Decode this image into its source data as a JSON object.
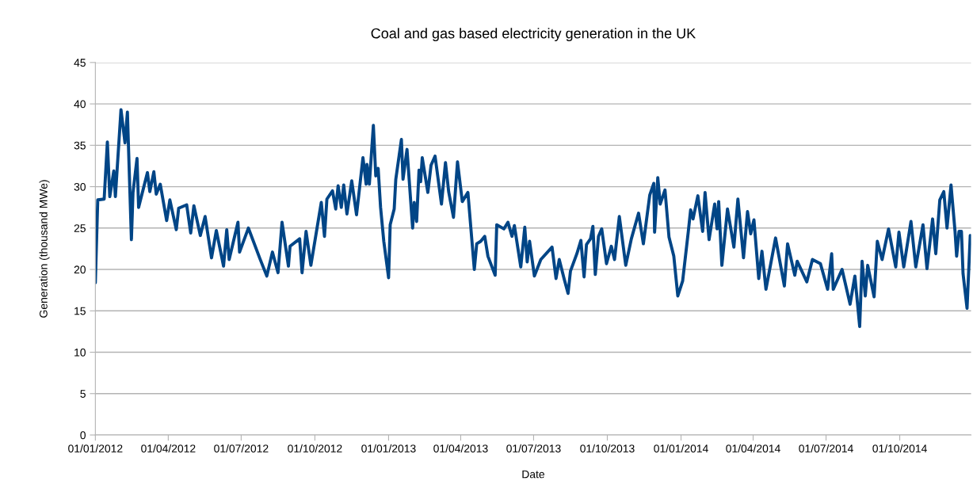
{
  "chart_data": {
    "type": "line",
    "title": "Coal and gas based electricity generation in the UK",
    "xlabel": "Date",
    "ylabel": "Generation (thousand MWe)",
    "x": [
      "2012-01-01",
      "2012-01-04",
      "2012-01-12",
      "2012-01-16",
      "2012-01-19",
      "2012-01-24",
      "2012-01-26",
      "2012-02-02",
      "2012-02-07",
      "2012-02-10",
      "2012-02-15",
      "2012-02-17",
      "2012-02-22",
      "2012-02-24",
      "2012-03-06",
      "2012-03-09",
      "2012-03-14",
      "2012-03-17",
      "2012-03-22",
      "2012-03-30",
      "2012-04-03",
      "2012-04-11",
      "2012-04-14",
      "2012-04-24",
      "2012-04-29",
      "2012-05-03",
      "2012-05-11",
      "2012-05-17",
      "2012-05-25",
      "2012-05-31",
      "2012-06-09",
      "2012-06-13",
      "2012-06-16",
      "2012-06-27",
      "2012-06-29",
      "2012-07-10",
      "2012-07-24",
      "2012-08-02",
      "2012-08-09",
      "2012-08-16",
      "2012-08-21",
      "2012-08-29",
      "2012-08-31",
      "2012-09-12",
      "2012-09-15",
      "2012-09-20",
      "2012-09-26",
      "2012-10-09",
      "2012-10-13",
      "2012-10-16",
      "2012-10-23",
      "2012-10-27",
      "2012-10-30",
      "2012-11-03",
      "2012-11-06",
      "2012-11-10",
      "2012-11-16",
      "2012-11-22",
      "2012-11-30",
      "2012-12-04",
      "2012-12-05",
      "2012-12-08",
      "2012-12-13",
      "2012-12-16",
      "2012-12-19",
      "2012-12-22",
      "2012-12-26",
      "2013-01-01",
      "2013-01-03",
      "2013-01-08",
      "2013-01-10",
      "2013-01-17",
      "2013-01-19",
      "2013-01-24",
      "2013-01-31",
      "2013-02-02",
      "2013-02-05",
      "2013-02-08",
      "2013-02-10",
      "2013-02-12",
      "2013-02-19",
      "2013-02-23",
      "2013-02-28",
      "2013-03-08",
      "2013-03-13",
      "2013-03-17",
      "2013-03-23",
      "2013-03-28",
      "2013-04-03",
      "2013-04-10",
      "2013-04-18",
      "2013-04-21",
      "2013-04-26",
      "2013-05-01",
      "2013-05-05",
      "2013-05-14",
      "2013-05-16",
      "2013-05-25",
      "2013-05-30",
      "2013-06-04",
      "2013-06-07",
      "2013-06-15",
      "2013-06-20",
      "2013-06-23",
      "2013-06-26",
      "2013-07-02",
      "2013-07-10",
      "2013-07-24",
      "2013-07-29",
      "2013-08-02",
      "2013-08-08",
      "2013-08-13",
      "2013-08-16",
      "2013-08-24",
      "2013-08-29",
      "2013-09-02",
      "2013-09-05",
      "2013-09-10",
      "2013-09-13",
      "2013-09-16",
      "2013-09-20",
      "2013-09-24",
      "2013-09-30",
      "2013-10-06",
      "2013-10-10",
      "2013-10-16",
      "2013-10-24",
      "2013-10-31",
      "2013-11-09",
      "2013-11-15",
      "2013-11-23",
      "2013-11-28",
      "2013-11-29",
      "2013-12-03",
      "2013-12-06",
      "2013-12-12",
      "2013-12-17",
      "2013-12-23",
      "2013-12-28",
      "2014-01-03",
      "2014-01-10",
      "2014-01-13",
      "2014-01-16",
      "2014-01-22",
      "2014-01-28",
      "2014-01-31",
      "2014-02-05",
      "2014-02-12",
      "2014-02-15",
      "2014-02-17",
      "2014-02-21",
      "2014-02-28",
      "2014-03-08",
      "2014-03-13",
      "2014-03-20",
      "2014-03-25",
      "2014-03-29",
      "2014-04-02",
      "2014-04-08",
      "2014-04-12",
      "2014-04-17",
      "2014-04-29",
      "2014-05-10",
      "2014-05-14",
      "2014-05-23",
      "2014-05-26",
      "2014-06-07",
      "2014-06-14",
      "2014-06-24",
      "2014-07-03",
      "2014-07-08",
      "2014-07-10",
      "2014-07-21",
      "2014-07-31",
      "2014-08-06",
      "2014-08-12",
      "2014-08-15",
      "2014-08-19",
      "2014-08-22",
      "2014-08-30",
      "2014-09-03",
      "2014-09-09",
      "2014-09-17",
      "2014-09-26",
      "2014-09-30",
      "2014-10-06",
      "2014-10-15",
      "2014-10-21",
      "2014-10-30",
      "2014-11-04",
      "2014-11-11",
      "2014-11-15",
      "2014-11-20",
      "2014-11-25",
      "2014-11-29",
      "2014-12-04",
      "2014-12-09",
      "2014-12-11",
      "2014-12-14",
      "2014-12-17",
      "2014-12-19",
      "2014-12-24",
      "2014-12-28"
    ],
    "series": [
      {
        "color": "#004586",
        "values": [
          18.4,
          28.4,
          28.5,
          35.4,
          28.8,
          31.9,
          28.8,
          39.3,
          35.3,
          39.0,
          23.6,
          29.3,
          33.4,
          27.5,
          31.7,
          29.4,
          31.8,
          29.1,
          30.3,
          25.9,
          28.4,
          24.8,
          27.4,
          27.8,
          24.4,
          27.7,
          24.1,
          26.4,
          21.4,
          24.7,
          20.4,
          24.8,
          21.2,
          25.7,
          22.1,
          25.0,
          21.4,
          19.2,
          22.1,
          19.6,
          25.7,
          20.4,
          22.8,
          23.7,
          19.6,
          24.6,
          20.5,
          28.1,
          24.0,
          28.5,
          29.5,
          27.3,
          30.1,
          27.5,
          30.2,
          26.7,
          30.7,
          26.6,
          33.5,
          30.3,
          32.7,
          30.3,
          37.4,
          31.3,
          32.2,
          27.5,
          23.4,
          19.0,
          25.4,
          27.3,
          30.9,
          35.7,
          30.9,
          34.5,
          25.0,
          28.1,
          25.8,
          32.0,
          30.6,
          33.5,
          29.3,
          32.6,
          33.7,
          27.9,
          32.9,
          29.4,
          26.3,
          33.0,
          28.2,
          29.3,
          20.0,
          23.1,
          23.4,
          24.0,
          21.6,
          19.3,
          25.4,
          24.9,
          25.7,
          24.0,
          25.3,
          20.3,
          25.1,
          20.9,
          23.4,
          19.2,
          21.2,
          22.7,
          18.9,
          21.2,
          18.9,
          17.1,
          19.8,
          21.9,
          23.5,
          19.1,
          23.0,
          23.7,
          25.2,
          19.4,
          24.0,
          24.9,
          20.7,
          22.8,
          21.2,
          26.4,
          20.5,
          23.7,
          26.8,
          23.1,
          29.0,
          30.4,
          24.5,
          31.1,
          27.9,
          29.6,
          23.9,
          21.6,
          16.8,
          18.6,
          24.5,
          27.2,
          26.1,
          28.9,
          24.6,
          29.3,
          23.6,
          27.9,
          24.9,
          28.2,
          20.5,
          27.3,
          22.7,
          28.5,
          21.4,
          27.0,
          24.3,
          26.0,
          18.9,
          22.2,
          17.6,
          23.8,
          18.0,
          23.1,
          19.3,
          21.0,
          18.5,
          21.2,
          20.7,
          17.6,
          21.9,
          17.6,
          20.0,
          15.8,
          19.2,
          13.1,
          21.0,
          16.8,
          20.5,
          16.7,
          23.4,
          21.2,
          24.9,
          20.3,
          24.5,
          20.3,
          25.8,
          20.3,
          25.4,
          20.1,
          26.1,
          21.9,
          28.4,
          29.4,
          25.0,
          30.2,
          24.6,
          21.6,
          24.6,
          24.6,
          19.5,
          15.3,
          24.1
        ]
      }
    ],
    "xlim": [
      "2012-01-01",
      "2014-12-29"
    ],
    "xticks": [
      {
        "value": "2012-01-01",
        "label": "01/01/2012"
      },
      {
        "value": "2012-04-01",
        "label": "01/04/2012"
      },
      {
        "value": "2012-07-01",
        "label": "01/07/2012"
      },
      {
        "value": "2012-10-01",
        "label": "01/10/2012"
      },
      {
        "value": "2013-01-01",
        "label": "01/01/2013"
      },
      {
        "value": "2013-04-01",
        "label": "01/04/2013"
      },
      {
        "value": "2013-07-01",
        "label": "01/07/2013"
      },
      {
        "value": "2013-10-01",
        "label": "01/10/2013"
      },
      {
        "value": "2014-01-01",
        "label": "01/01/2014"
      },
      {
        "value": "2014-04-01",
        "label": "01/04/2014"
      },
      {
        "value": "2014-07-01",
        "label": "01/07/2014"
      },
      {
        "value": "2014-10-01",
        "label": "01/10/2014"
      }
    ],
    "ylim": [
      0,
      45
    ],
    "yticks": [
      0,
      5,
      10,
      15,
      20,
      25,
      30,
      35,
      40,
      45
    ],
    "grid": "y",
    "line_style": "solid",
    "marker": "none"
  }
}
